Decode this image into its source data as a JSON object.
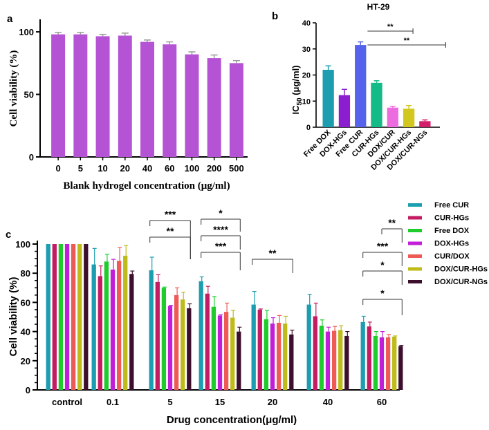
{
  "chart_data": [
    {
      "panel": "a",
      "type": "bar",
      "title": "",
      "xlabel": "Blank hydrogel concentration (μg/ml)",
      "ylabel": "Cell viability (%)",
      "categories": [
        "0",
        "5",
        "10",
        "20",
        "40",
        "60",
        "100",
        "200",
        "500"
      ],
      "values": [
        98,
        98,
        96.5,
        97,
        92,
        90,
        82,
        79,
        75
      ],
      "errors": [
        1.5,
        1.5,
        1.5,
        2,
        1.5,
        2,
        2,
        2.5,
        2
      ],
      "ylim": [
        0,
        110
      ],
      "yticks": [
        0,
        50,
        100
      ],
      "color": "#b453d4"
    },
    {
      "panel": "b",
      "type": "bar",
      "title": "HT-29",
      "xlabel": "",
      "ylabel_main": "IC",
      "ylabel_sub": "50",
      "ylabel_rest": " (μg/ml)",
      "categories": [
        "Free DOX",
        "DOX-HGs",
        "Free CUR",
        "CUR-HGs",
        "DOX/CUR",
        "DOX/CUR-HGs",
        "DOX/CUR-NGs"
      ],
      "values": [
        22,
        12.3,
        31.5,
        17,
        7.5,
        7.1,
        2.3
      ],
      "errors": [
        1.5,
        2.2,
        1.2,
        0.8,
        0.5,
        1.2,
        0.5
      ],
      "colors": [
        "#1d9eb0",
        "#8b1fd0",
        "#5563ec",
        "#14bb86",
        "#ec6ce0",
        "#d1c71f",
        "#d11d6a"
      ],
      "ylim": [
        0,
        40
      ],
      "yticks": [
        0,
        10,
        20,
        30,
        40
      ],
      "significance": [
        {
          "from": 2,
          "to": 5,
          "label": "**"
        },
        {
          "from": 2,
          "to": 6,
          "label": "**"
        }
      ]
    },
    {
      "panel": "c",
      "type": "bar",
      "xlabel": "Drug concentration(μg/ml)",
      "ylabel": "Cell viability (%)",
      "categories": [
        "control",
        "0.1",
        "5",
        "15",
        "20",
        "40",
        "60"
      ],
      "ylim": [
        0,
        100
      ],
      "yticks": [
        0,
        20,
        40,
        60,
        80,
        100
      ],
      "series": [
        {
          "name": "Free CUR",
          "color": "#1d9eb0",
          "values": [
            100,
            86,
            82,
            74.5,
            58.5,
            58.5,
            46.5
          ],
          "errors": [
            0,
            11,
            9,
            3,
            9,
            7,
            4
          ]
        },
        {
          "name": "CUR-HGs",
          "color": "#c41c63",
          "values": [
            100,
            78,
            74,
            66,
            55,
            50.5,
            43.5
          ],
          "errors": [
            0,
            7,
            5,
            5,
            0.5,
            9,
            3
          ]
        },
        {
          "name": "Free DOX",
          "color": "#1fcc2c",
          "values": [
            100,
            88,
            70,
            57,
            48.5,
            44,
            37
          ],
          "errors": [
            0,
            5,
            0.5,
            7,
            6,
            4,
            3
          ]
        },
        {
          "name": "DOX-HGs",
          "color": "#c11ed7",
          "values": [
            100,
            82.5,
            57.5,
            51,
            45.5,
            40,
            36
          ],
          "errors": [
            0,
            7,
            0.5,
            0.5,
            4,
            3,
            4
          ]
        },
        {
          "name": "CUR/DOX",
          "color": "#ee5a55",
          "values": [
            100,
            88.5,
            65,
            53.5,
            46,
            40.5,
            36
          ],
          "errors": [
            0,
            9,
            5,
            6,
            5,
            3,
            2
          ]
        },
        {
          "name": "DOX/CUR-HGs",
          "color": "#bfbb1a",
          "values": [
            100,
            92,
            62,
            49.5,
            45.5,
            41,
            36.5
          ],
          "errors": [
            0,
            7,
            5,
            5,
            5,
            3,
            0.5
          ]
        },
        {
          "name": "DOX/CUR-NGs",
          "color": "#3c0f2c",
          "values": [
            100,
            79.5,
            56,
            40,
            38,
            37,
            30
          ],
          "errors": [
            0,
            2,
            3,
            3,
            3,
            3,
            0.5
          ]
        }
      ],
      "significance": [
        {
          "group": 2,
          "level": 0,
          "label": "***"
        },
        {
          "group": 2,
          "level": 1,
          "label": "**"
        },
        {
          "group": 3,
          "level": 0,
          "label": "*"
        },
        {
          "group": 3,
          "level": 1,
          "label": "****"
        },
        {
          "group": 3,
          "level": 2,
          "label": "***"
        },
        {
          "group": 4,
          "level": 0,
          "label": "**"
        },
        {
          "group": 6,
          "level": 0,
          "label": "**"
        },
        {
          "group": 6,
          "level": 1,
          "label": "***"
        },
        {
          "group": 6,
          "level": 2,
          "label": "*"
        },
        {
          "group": 6,
          "level": 3,
          "label": "*"
        }
      ]
    }
  ],
  "panel_labels": {
    "a": "a",
    "b": "b",
    "c": "c"
  }
}
